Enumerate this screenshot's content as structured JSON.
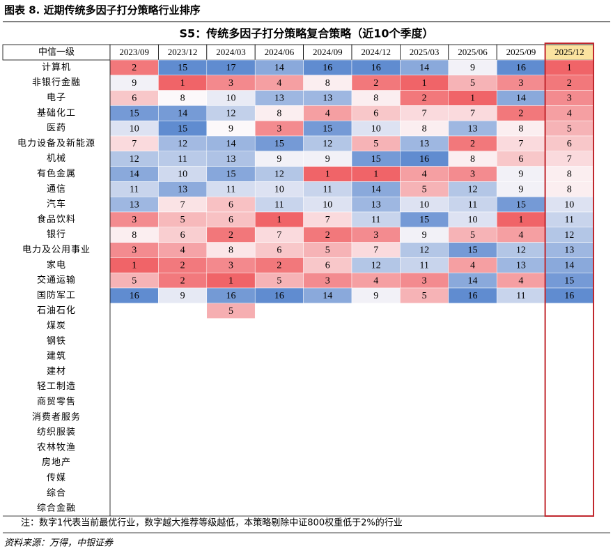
{
  "header": {
    "title": "图表 8. 近期传统多因子打分策略行业排序"
  },
  "table": {
    "title": "S5：传统多因子打分策略复合策略（近10个季度）",
    "row_header": "中信一级",
    "columns": [
      "2023/09",
      "2023/12",
      "2024/03",
      "2024/06",
      "2024/09",
      "2024/12",
      "2025/03",
      "2025/06",
      "2025/09",
      "2025/12"
    ],
    "rows": [
      {
        "name": "计算机",
        "values": [
          2,
          15,
          17,
          14,
          16,
          16,
          14,
          9,
          16,
          1
        ]
      },
      {
        "name": "非银行金融",
        "values": [
          9,
          1,
          3,
          4,
          8,
          2,
          1,
          5,
          3,
          2
        ]
      },
      {
        "name": "电子",
        "values": [
          6,
          8,
          10,
          13,
          13,
          8,
          2,
          1,
          14,
          3
        ]
      },
      {
        "name": "基础化工",
        "values": [
          15,
          14,
          12,
          8,
          4,
          6,
          7,
          7,
          2,
          4
        ]
      },
      {
        "name": "医药",
        "values": [
          10,
          15,
          9,
          3,
          15,
          10,
          8,
          13,
          8,
          5
        ]
      },
      {
        "name": "电力设备及新能源",
        "values": [
          7,
          12,
          14,
          15,
          12,
          5,
          13,
          2,
          7,
          6
        ]
      },
      {
        "name": "机械",
        "values": [
          12,
          11,
          13,
          9,
          9,
          15,
          16,
          8,
          6,
          7
        ]
      },
      {
        "name": "有色金属",
        "values": [
          14,
          10,
          15,
          12,
          1,
          1,
          4,
          3,
          9,
          8
        ]
      },
      {
        "name": "通信",
        "values": [
          11,
          13,
          11,
          10,
          11,
          14,
          5,
          12,
          9,
          8
        ]
      },
      {
        "name": "汽车",
        "values": [
          13,
          7,
          6,
          11,
          10,
          13,
          10,
          11,
          15,
          10
        ]
      },
      {
        "name": "食品饮料",
        "values": [
          3,
          5,
          6,
          1,
          7,
          11,
          15,
          10,
          1,
          11
        ]
      },
      {
        "name": "银行",
        "values": [
          8,
          6,
          2,
          7,
          2,
          3,
          9,
          5,
          4,
          12
        ]
      },
      {
        "name": "电力及公用事业",
        "values": [
          3,
          4,
          8,
          6,
          5,
          7,
          12,
          15,
          12,
          13
        ]
      },
      {
        "name": "家电",
        "values": [
          1,
          2,
          3,
          2,
          6,
          12,
          11,
          4,
          13,
          14
        ]
      },
      {
        "name": "交通运输",
        "values": [
          5,
          2,
          1,
          5,
          3,
          4,
          3,
          14,
          4,
          15
        ]
      },
      {
        "name": "国防军工",
        "values": [
          16,
          9,
          16,
          16,
          14,
          9,
          5,
          16,
          11,
          16
        ]
      },
      {
        "name": "石油石化",
        "values": [
          null,
          null,
          5,
          null,
          null,
          null,
          null,
          null,
          null,
          null
        ]
      },
      {
        "name": "煤炭",
        "values": [
          null,
          null,
          null,
          null,
          null,
          null,
          null,
          null,
          null,
          null
        ]
      },
      {
        "name": "钢铁",
        "values": [
          null,
          null,
          null,
          null,
          null,
          null,
          null,
          null,
          null,
          null
        ]
      },
      {
        "name": "建筑",
        "values": [
          null,
          null,
          null,
          null,
          null,
          null,
          null,
          null,
          null,
          null
        ]
      },
      {
        "name": "建材",
        "values": [
          null,
          null,
          null,
          null,
          null,
          null,
          null,
          null,
          null,
          null
        ]
      },
      {
        "name": "轻工制造",
        "values": [
          null,
          null,
          null,
          null,
          null,
          null,
          null,
          null,
          null,
          null
        ]
      },
      {
        "name": "商贸零售",
        "values": [
          null,
          null,
          null,
          null,
          null,
          null,
          null,
          null,
          null,
          null
        ]
      },
      {
        "name": "消费者服务",
        "values": [
          null,
          null,
          null,
          null,
          null,
          null,
          null,
          null,
          null,
          null
        ]
      },
      {
        "name": "纺织服装",
        "values": [
          null,
          null,
          null,
          null,
          null,
          null,
          null,
          null,
          null,
          null
        ]
      },
      {
        "name": "农林牧渔",
        "values": [
          null,
          null,
          null,
          null,
          null,
          null,
          null,
          null,
          null,
          null
        ]
      },
      {
        "name": "房地产",
        "values": [
          null,
          null,
          null,
          null,
          null,
          null,
          null,
          null,
          null,
          null
        ]
      },
      {
        "name": "传媒",
        "values": [
          null,
          null,
          null,
          null,
          null,
          null,
          null,
          null,
          null,
          null
        ]
      },
      {
        "name": "综合",
        "values": [
          null,
          null,
          null,
          null,
          null,
          null,
          null,
          null,
          null,
          null
        ]
      },
      {
        "name": "综合金融",
        "values": [
          null,
          null,
          null,
          null,
          null,
          null,
          null,
          null,
          null,
          null
        ]
      }
    ],
    "note": "注：数字1代表当前最优行业，数字越大推荐等级越低，本策略剔除中证800权重低于2%的行业"
  },
  "footer": {
    "source": "资料来源：万得，中银证券"
  }
}
